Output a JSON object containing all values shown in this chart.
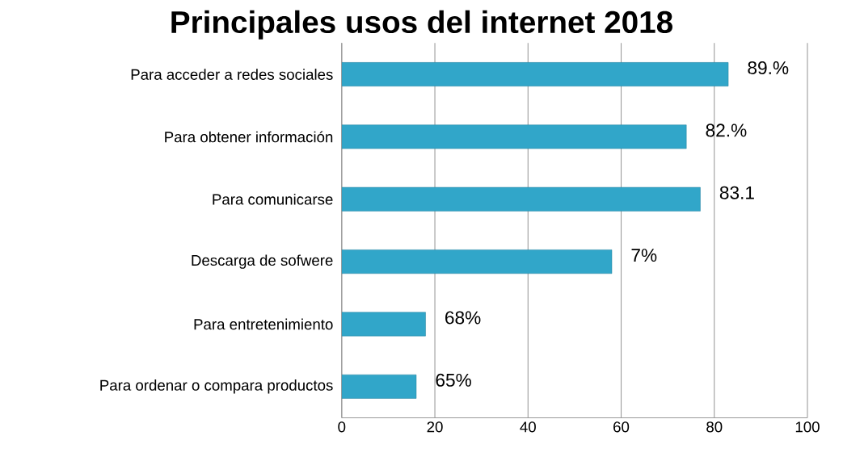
{
  "chart_data": {
    "type": "bar",
    "orientation": "horizontal",
    "title": "Principales usos del internet 2018",
    "categories": [
      "Para acceder a redes sociales",
      "Para obtener información",
      "Para comunicarse",
      "Descarga de sofwere",
      "Para entretenimiento",
      "Para ordenar o compara productos"
    ],
    "values": [
      83,
      74,
      77,
      58,
      18,
      16
    ],
    "annotations": [
      {
        "text": "89.%",
        "x": 83,
        "y": "Para acceder a redes sociales"
      },
      {
        "text": "82.%",
        "x": 74,
        "y": "Para obtener información"
      },
      {
        "text": "83.1",
        "x": 77,
        "y": "Para comunicarse"
      },
      {
        "text": "7%",
        "x": 58,
        "y": "Descarga de sofwere"
      },
      {
        "text": "68%",
        "x": 18,
        "y": "Para entretenimiento"
      },
      {
        "text": "65%",
        "x": 16,
        "y": "Para ordenar o compara productos"
      }
    ],
    "color": "#31a6c9",
    "xlim": [
      0,
      100
    ],
    "xticks": [
      0,
      20,
      40,
      60,
      80,
      100
    ],
    "grid": "x"
  }
}
